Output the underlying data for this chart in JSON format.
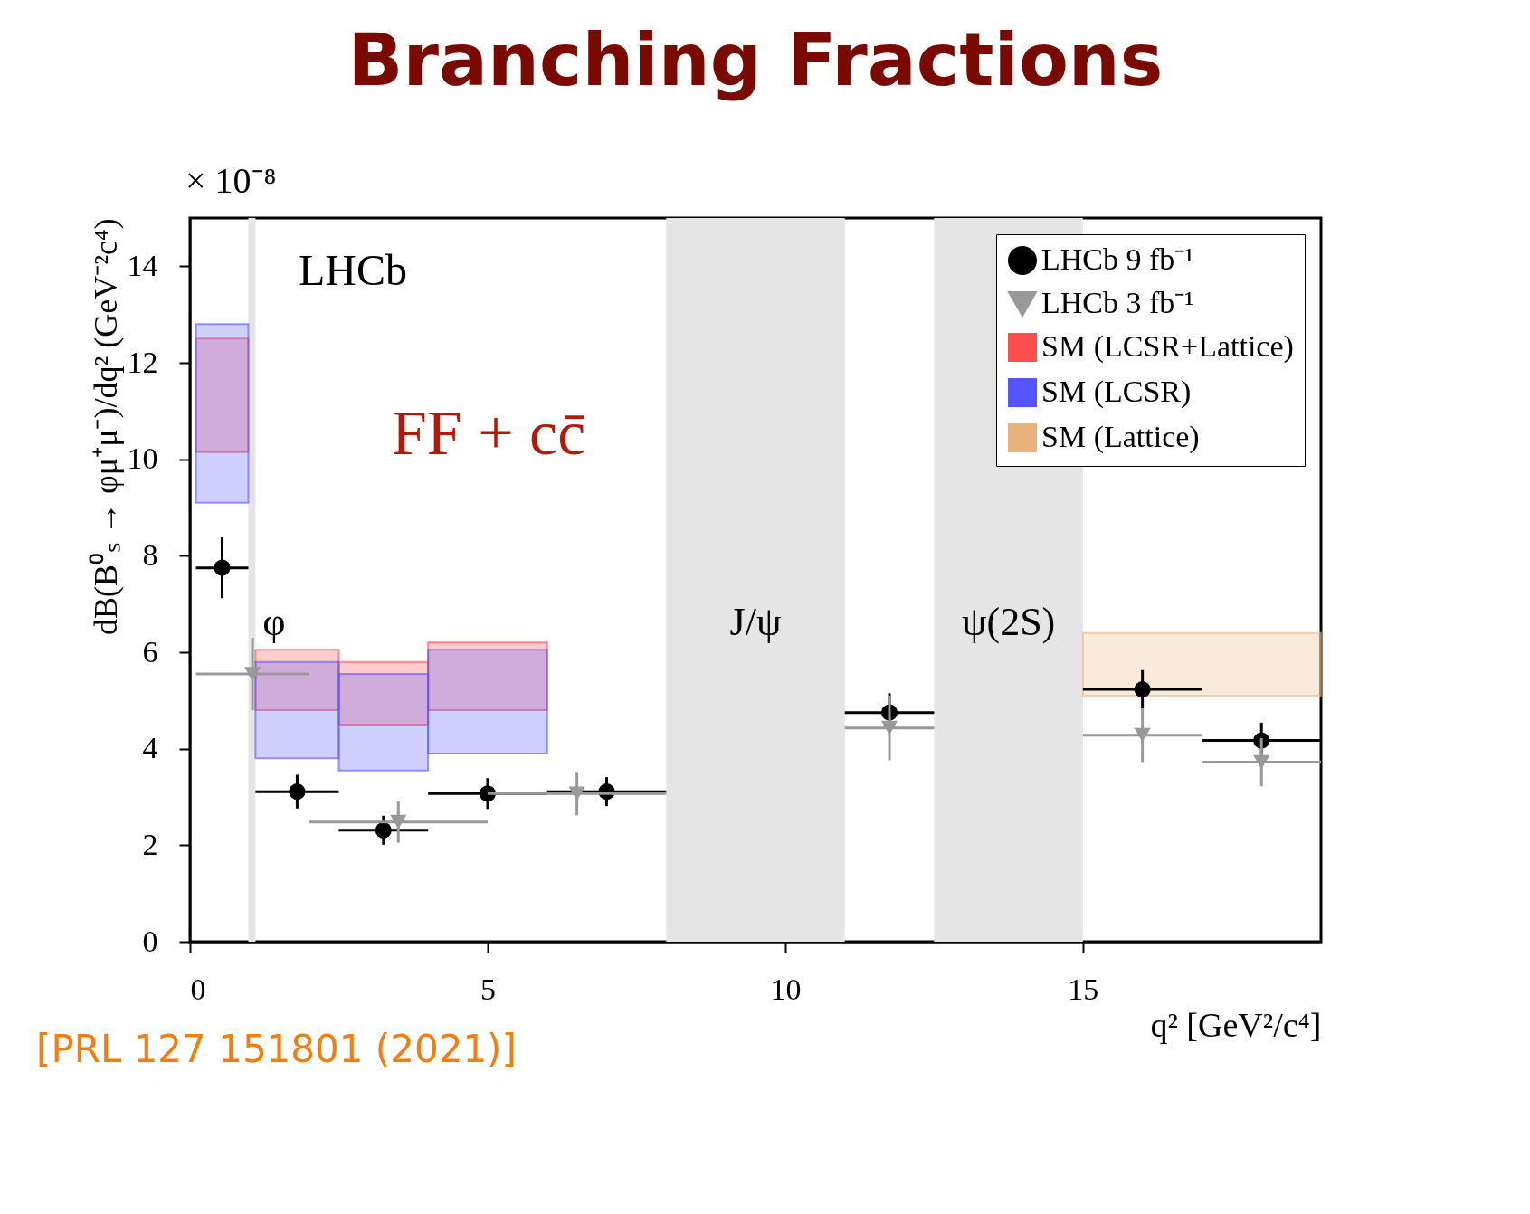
{
  "chart_data": {
    "type": "scatter",
    "title": "Branching Fractions",
    "xlabel": "q² [GeV²/c⁴]",
    "ylabel": "dB(B⁰ₛ → φμ⁺μ⁻)/dq² (GeV⁻²c⁴)",
    "annotations": [
      "× 10⁻⁸",
      "LHCb",
      "FF + cc̄",
      "[PRL 127 151801 (2021)]"
    ],
    "xlim": [
      0,
      19
    ],
    "xticks": [
      0,
      5,
      10,
      15
    ],
    "ylim": [
      0,
      15
    ],
    "yticks": [
      0,
      2,
      4,
      6,
      8,
      10,
      12,
      14
    ],
    "grid": false,
    "legend": "top right",
    "bands": [
      {
        "axis": "x",
        "from": 0.98,
        "to": 1.1,
        "label": "φ",
        "color": "#e5e5e5"
      },
      {
        "axis": "x",
        "from": 8,
        "to": 11,
        "label": "J/ψ",
        "color": "#e5e5e5"
      },
      {
        "axis": "x",
        "from": 12.5,
        "to": 15,
        "label": "ψ(2S)",
        "color": "#e5e5e5"
      }
    ],
    "series": [
      {
        "name": "LHCb 9 fb⁻¹",
        "marker": "circle",
        "color": "#000000",
        "x": [
          0.54,
          1.8,
          3.25,
          5,
          7,
          11.75,
          16,
          18
        ],
        "values": [
          7.75,
          3.11,
          2.31,
          3.07,
          3.11,
          4.75,
          5.23,
          4.17
        ],
        "errors": [
          0.63,
          0.35,
          0.3,
          0.32,
          0.3,
          0.4,
          0.4,
          0.37
        ],
        "xerrors": [
          0.44,
          0.7,
          0.75,
          1,
          1,
          0.75,
          1,
          1
        ]
      },
      {
        "name": "LHCb 3 fb⁻¹",
        "marker": "triangle",
        "color": "#999999",
        "x": [
          1.05,
          3.5,
          6.5,
          11.75,
          16,
          18
        ],
        "values": [
          5.55,
          2.48,
          3.07,
          4.43,
          4.28,
          3.72
        ],
        "errors": [
          0.75,
          0.43,
          0.45,
          0.67,
          0.56,
          0.5
        ],
        "xerrors": [
          0.95,
          1.5,
          1.5,
          0.75,
          1,
          1
        ]
      },
      {
        "name": "SM (LCSR+Lattice)",
        "type": "histogram",
        "color": "#ff4d4d",
        "bins": [
          0.1,
          0.98,
          1.1,
          2.5,
          4,
          6
        ],
        "base": [
          10.15,
          null,
          4.8,
          4.5,
          4.8
        ],
        "values": [
          2.35,
          null,
          1.25,
          1.3,
          1.4
        ]
      },
      {
        "name": "SM (LCSR)",
        "type": "histogram",
        "color": "#5555ff",
        "bins": [
          0.1,
          0.98,
          1.1,
          2.5,
          4,
          6
        ],
        "base": [
          9.1,
          null,
          3.8,
          3.55,
          3.9
        ],
        "values": [
          3.7,
          null,
          2.0,
          2.0,
          2.15
        ]
      },
      {
        "name": "SM (Lattice)",
        "type": "histogram",
        "color": "#e8b27c",
        "bins": [
          15,
          19
        ],
        "base": [
          5.1
        ],
        "values": [
          1.3
        ]
      }
    ]
  }
}
